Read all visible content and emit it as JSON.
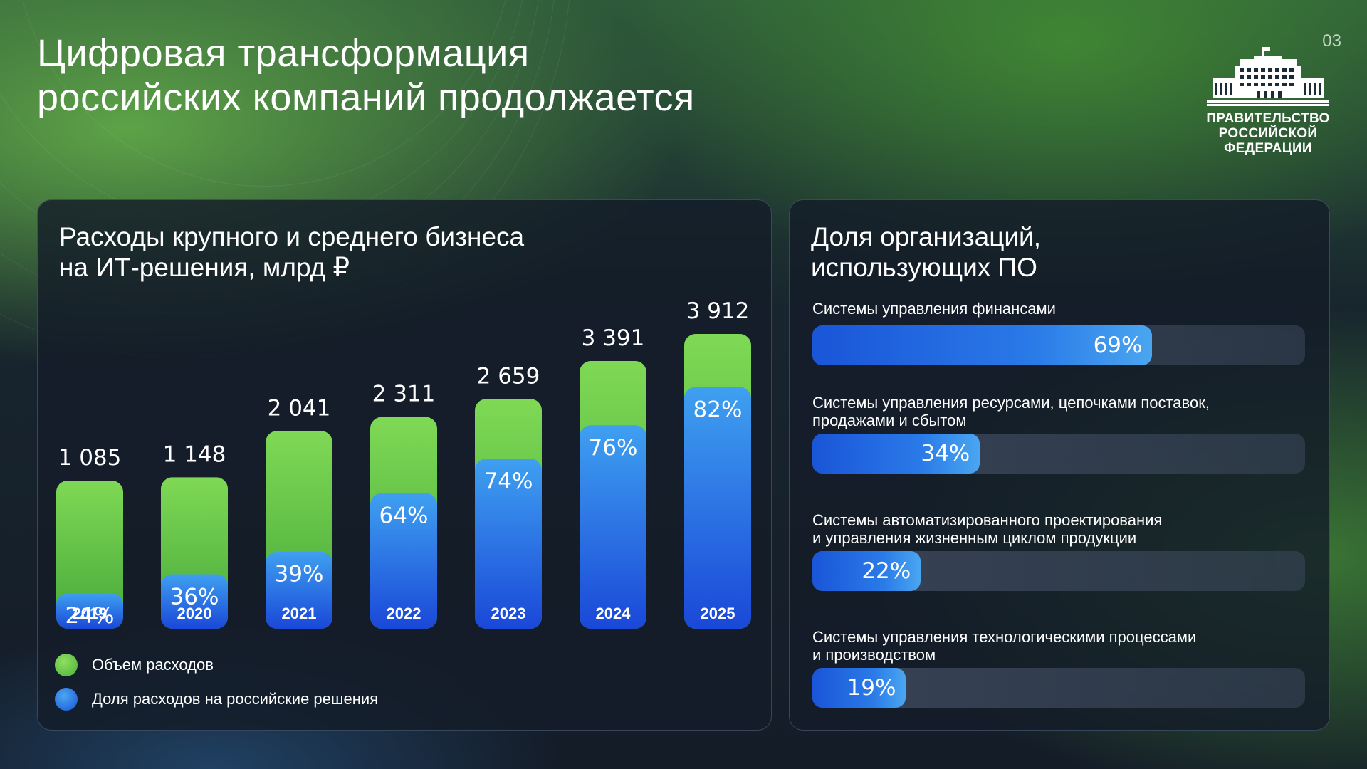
{
  "page_number": "03",
  "title_lines": [
    "Цифровая трансформация",
    "российских компаний продолжается"
  ],
  "logo": {
    "text_lines": [
      "ПРАВИТЕЛЬСТВО",
      "РОССИЙСКОЙ",
      "ФЕДЕРАЦИИ"
    ],
    "icon": "government-building-icon"
  },
  "colors": {
    "green_top": "#7fd955",
    "green_bottom": "#46a83a",
    "blue_top": "#3fa0f0",
    "blue_bottom": "#1a48d8"
  },
  "left_panel": {
    "title_lines": [
      "Расходы крупного и среднего бизнеса",
      "на ИТ-решения, млрд ₽"
    ],
    "legend": [
      {
        "label": "Объем расходов",
        "color": "#6ccf4a"
      },
      {
        "label": "Доля расходов на российские решения",
        "color": "#2a78e8"
      }
    ]
  },
  "right_panel": {
    "title_lines": [
      "Доля организаций,",
      "использующих ПО"
    ]
  },
  "chart_data": [
    {
      "type": "bar",
      "title": "Расходы крупного и среднего бизнеса на ИТ-решения, млрд ₽",
      "categories": [
        "2019",
        "2020",
        "2021",
        "2022",
        "2023",
        "2024",
        "2025"
      ],
      "value_labels": [
        "1 085",
        "1 148",
        "2 041",
        "2 311",
        "2 659",
        "3 391",
        "3 912"
      ],
      "share_labels": [
        "24%",
        "36%",
        "39%",
        "64%",
        "74%",
        "76%",
        "82%"
      ],
      "series": [
        {
          "name": "Объем расходов",
          "values": [
            1085,
            1148,
            2041,
            2311,
            2659,
            3391,
            3912
          ]
        },
        {
          "name": "Доля расходов на российские решения",
          "values": [
            24,
            36,
            39,
            64,
            74,
            76,
            82
          ]
        }
      ],
      "legend_position": "bottom-left"
    },
    {
      "type": "bar",
      "orientation": "horizontal",
      "title": "Доля организаций, использующих ПО",
      "categories": [
        "Системы управления финансами",
        "Системы управления ресурсами, цепочками поставок, продажами и сбытом",
        "Системы автоматизированного проектирования и управления жизненным циклом продукции",
        "Системы управления технологическими процессами и производством"
      ],
      "category_lines": [
        [
          "Системы управления финансами"
        ],
        [
          "Системы управления ресурсами, цепочками поставок,",
          "продажами и сбытом"
        ],
        [
          "Системы автоматизированного проектирования",
          "и управления жизненным циклом продукции"
        ],
        [
          "Системы управления технологическими процессами",
          "и производством"
        ]
      ],
      "value_labels": [
        "69%",
        "34%",
        "22%",
        "19%"
      ],
      "values": [
        69,
        34,
        22,
        19
      ],
      "xlim": [
        0,
        100
      ]
    }
  ]
}
